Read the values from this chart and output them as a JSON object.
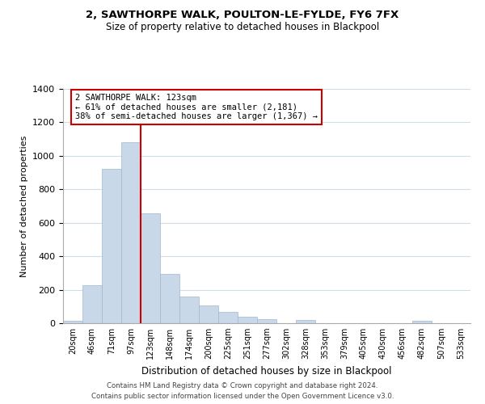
{
  "title": "2, SAWTHORPE WALK, POULTON-LE-FYLDE, FY6 7FX",
  "subtitle": "Size of property relative to detached houses in Blackpool",
  "xlabel": "Distribution of detached houses by size in Blackpool",
  "ylabel": "Number of detached properties",
  "bar_labels": [
    "20sqm",
    "46sqm",
    "71sqm",
    "97sqm",
    "123sqm",
    "148sqm",
    "174sqm",
    "200sqm",
    "225sqm",
    "251sqm",
    "277sqm",
    "302sqm",
    "328sqm",
    "353sqm",
    "379sqm",
    "405sqm",
    "430sqm",
    "456sqm",
    "482sqm",
    "507sqm",
    "533sqm"
  ],
  "bar_heights": [
    15,
    228,
    920,
    1080,
    655,
    293,
    158,
    108,
    70,
    40,
    25,
    0,
    20,
    0,
    0,
    0,
    0,
    0,
    15,
    0,
    0
  ],
  "bar_color": "#c8d8e8",
  "bar_edge_color": "#a0b8d0",
  "vline_color": "#cc0000",
  "annotation_line1": "2 SAWTHORPE WALK: 123sqm",
  "annotation_line2": "← 61% of detached houses are smaller (2,181)",
  "annotation_line3": "38% of semi-detached houses are larger (1,367) →",
  "annotation_box_color": "#ffffff",
  "annotation_box_edge": "#cc0000",
  "ylim": [
    0,
    1400
  ],
  "yticks": [
    0,
    200,
    400,
    600,
    800,
    1000,
    1200,
    1400
  ],
  "footer_line1": "Contains HM Land Registry data © Crown copyright and database right 2024.",
  "footer_line2": "Contains public sector information licensed under the Open Government Licence v3.0.",
  "background_color": "#ffffff",
  "grid_color": "#d0dce8"
}
